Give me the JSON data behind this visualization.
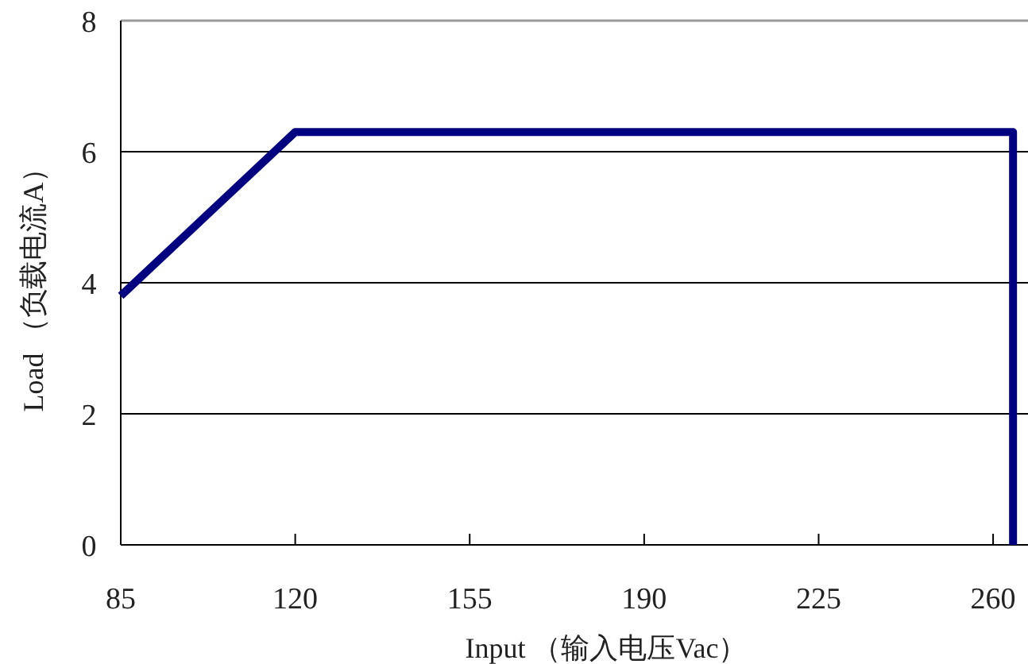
{
  "chart_data": {
    "type": "line",
    "xlabel": "Input （输入电压Vac）",
    "ylabel": "Load （负载电流A）",
    "x": [
      85,
      120,
      264,
      264
    ],
    "series": [
      {
        "color": "#000080",
        "values": [
          3.8,
          6.3,
          6.3,
          0
        ]
      }
    ],
    "xlim": [
      85,
      267
    ],
    "ylim": [
      0,
      8
    ],
    "xticks": [
      85,
      120,
      155,
      190,
      225,
      260
    ],
    "yticks": [
      0,
      2,
      4,
      6,
      8
    ],
    "grid": "y"
  }
}
